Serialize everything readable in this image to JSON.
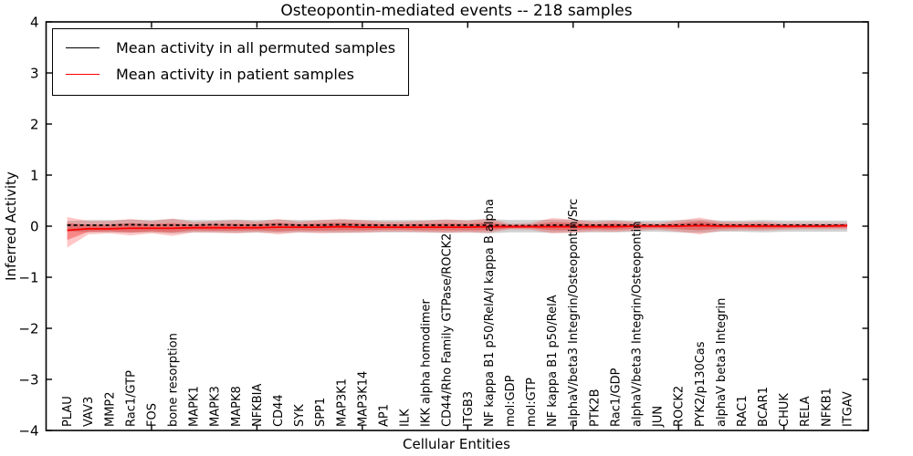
{
  "title": "Osteopontin-mediated events -- 218 samples",
  "legend": {
    "items": [
      {
        "label": "Mean activity in all permuted samples",
        "color": "#000000"
      },
      {
        "label": "Mean activity in patient samples",
        "color": "#ff0000"
      }
    ]
  },
  "colors": {
    "permuted_line": "#000000",
    "patient_line": "#ff0000",
    "permuted_band": "rgba(140,140,140,0.40)",
    "patient_band_outer": "rgba(255,30,30,0.25)",
    "patient_band_inner": "rgba(235,20,20,0.35)",
    "axis": "#000000"
  },
  "chart_data": {
    "type": "line",
    "title": "Osteopontin-mediated events -- 218 samples",
    "xlabel": "Cellular Entities",
    "ylabel": "Inferred Activity",
    "ylim": [
      -4,
      4
    ],
    "yticks": [
      4,
      3,
      2,
      1,
      0,
      -1,
      -2,
      -3,
      -4
    ],
    "ytick_labels": [
      "4",
      "3",
      "2",
      "1",
      "0",
      "−1",
      "−2",
      "−3",
      "−4"
    ],
    "xlim": [
      0,
      39
    ],
    "xticks": [
      5,
      10,
      15,
      20,
      25,
      30,
      35
    ],
    "grid": false,
    "legend_position": "upper left",
    "categories": [
      "PLAU",
      "VAV3",
      "MMP2",
      "Rac1/GTP",
      "FOS",
      "bone resorption",
      "MAPK1",
      "MAPK3",
      "MAPK8",
      "NFKBIA",
      "CD44",
      "SYK",
      "SPP1",
      "MAP3K1",
      "MAP3K14",
      "AP1",
      "ILK",
      "IKK alpha homodimer",
      "CD44/Rho Family GTPase/ROCK2",
      "ITGB3",
      "NF kappa B1 p50/RelA/I kappa B alpha",
      "mol:GDP",
      "mol:GTP",
      "NF kappa B1 p50/RelA",
      "alphaV/beta3 Integrin/Osteopontin/Src",
      "PTK2B",
      "Rac1/GDP",
      "alphaV/beta3 Integrin/Osteopontin",
      "JUN",
      "ROCK2",
      "PYK2/p130Cas",
      "alphaV beta3 Integrin",
      "RAC1",
      "BCAR1",
      "CHUK",
      "RELA",
      "NFKB1",
      "ITGAV"
    ],
    "series": [
      {
        "name": "Mean activity in all permuted samples",
        "color": "#000000",
        "style": "dashed",
        "values": [
          0.02,
          0.02,
          0.02,
          0.03,
          0.02,
          0.02,
          0.02,
          0.03,
          0.02,
          0.02,
          0.03,
          0.02,
          0.02,
          0.03,
          0.02,
          0.02,
          0.02,
          0.02,
          0.02,
          0.02,
          0.02,
          0.01,
          0.01,
          0.02,
          0.02,
          0.02,
          0.02,
          0.02,
          0.02,
          0.02,
          0.03,
          0.02,
          0.02,
          0.02,
          0.02,
          0.02,
          0.02,
          0.02
        ]
      },
      {
        "name": "Mean activity in patient samples",
        "color": "#ff0000",
        "style": "solid",
        "values": [
          -0.08,
          -0.05,
          -0.05,
          -0.04,
          -0.04,
          -0.04,
          -0.03,
          -0.03,
          -0.03,
          -0.03,
          -0.02,
          -0.02,
          -0.02,
          -0.01,
          -0.02,
          -0.02,
          -0.02,
          -0.02,
          -0.02,
          -0.02,
          -0.01,
          -0.01,
          -0.01,
          -0.01,
          -0.01,
          -0.01,
          -0.01,
          0.0,
          0.0,
          0.0,
          0.01,
          0.0,
          0.0,
          0.0,
          0.0,
          0.0,
          0.0,
          0.01
        ]
      }
    ],
    "bands": [
      {
        "name": "permuted-range",
        "color": "rgba(140,140,140,0.40)",
        "upper": [
          0.1,
          0.12,
          0.12,
          0.13,
          0.12,
          0.14,
          0.12,
          0.12,
          0.13,
          0.12,
          0.13,
          0.12,
          0.12,
          0.13,
          0.12,
          0.12,
          0.12,
          0.12,
          0.13,
          0.12,
          0.14,
          0.12,
          0.12,
          0.13,
          0.12,
          0.12,
          0.12,
          0.11,
          0.11,
          0.12,
          0.13,
          0.11,
          0.11,
          0.12,
          0.11,
          0.11,
          0.11,
          0.11
        ],
        "lower": [
          -0.1,
          -0.12,
          -0.12,
          -0.13,
          -0.12,
          -0.14,
          -0.12,
          -0.12,
          -0.13,
          -0.12,
          -0.13,
          -0.12,
          -0.12,
          -0.13,
          -0.12,
          -0.12,
          -0.12,
          -0.12,
          -0.13,
          -0.12,
          -0.14,
          -0.12,
          -0.12,
          -0.13,
          -0.12,
          -0.12,
          -0.12,
          -0.11,
          -0.11,
          -0.12,
          -0.13,
          -0.11,
          -0.11,
          -0.12,
          -0.11,
          -0.11,
          -0.11,
          -0.11
        ]
      },
      {
        "name": "patient-range-outer",
        "color": "rgba(255,30,30,0.25)",
        "upper": [
          0.18,
          0.1,
          0.1,
          0.14,
          0.1,
          0.15,
          0.08,
          0.1,
          0.12,
          0.09,
          0.14,
          0.09,
          0.12,
          0.14,
          0.12,
          0.09,
          0.09,
          0.11,
          0.13,
          0.11,
          0.15,
          0.05,
          0.06,
          0.16,
          0.13,
          0.09,
          0.11,
          0.08,
          0.06,
          0.11,
          0.17,
          0.09,
          0.08,
          0.09,
          0.06,
          0.06,
          0.06,
          0.06
        ],
        "lower": [
          -0.42,
          -0.16,
          -0.14,
          -0.18,
          -0.14,
          -0.19,
          -0.12,
          -0.13,
          -0.14,
          -0.12,
          -0.16,
          -0.12,
          -0.14,
          -0.13,
          -0.13,
          -0.11,
          -0.11,
          -0.12,
          -0.13,
          -0.12,
          -0.13,
          -0.06,
          -0.07,
          -0.14,
          -0.13,
          -0.1,
          -0.11,
          -0.09,
          -0.07,
          -0.11,
          -0.16,
          -0.09,
          -0.08,
          -0.09,
          -0.07,
          -0.06,
          -0.06,
          -0.06
        ]
      },
      {
        "name": "patient-range-inner",
        "color": "rgba(235,20,20,0.35)",
        "upper": [
          0.06,
          0.03,
          0.03,
          0.06,
          0.04,
          0.06,
          0.03,
          0.04,
          0.05,
          0.04,
          0.07,
          0.04,
          0.06,
          0.07,
          0.06,
          0.04,
          0.04,
          0.05,
          0.06,
          0.05,
          0.08,
          0.02,
          0.03,
          0.08,
          0.07,
          0.04,
          0.06,
          0.04,
          0.03,
          0.06,
          0.1,
          0.05,
          0.04,
          0.05,
          0.03,
          0.03,
          0.03,
          0.04
        ],
        "lower": [
          -0.27,
          -0.11,
          -0.1,
          -0.12,
          -0.1,
          -0.12,
          -0.08,
          -0.09,
          -0.09,
          -0.08,
          -0.1,
          -0.08,
          -0.09,
          -0.08,
          -0.08,
          -0.07,
          -0.07,
          -0.08,
          -0.08,
          -0.08,
          -0.08,
          -0.04,
          -0.04,
          -0.08,
          -0.08,
          -0.06,
          -0.07,
          -0.05,
          -0.04,
          -0.06,
          -0.08,
          -0.05,
          -0.04,
          -0.05,
          -0.04,
          -0.03,
          -0.03,
          -0.03
        ]
      }
    ]
  }
}
